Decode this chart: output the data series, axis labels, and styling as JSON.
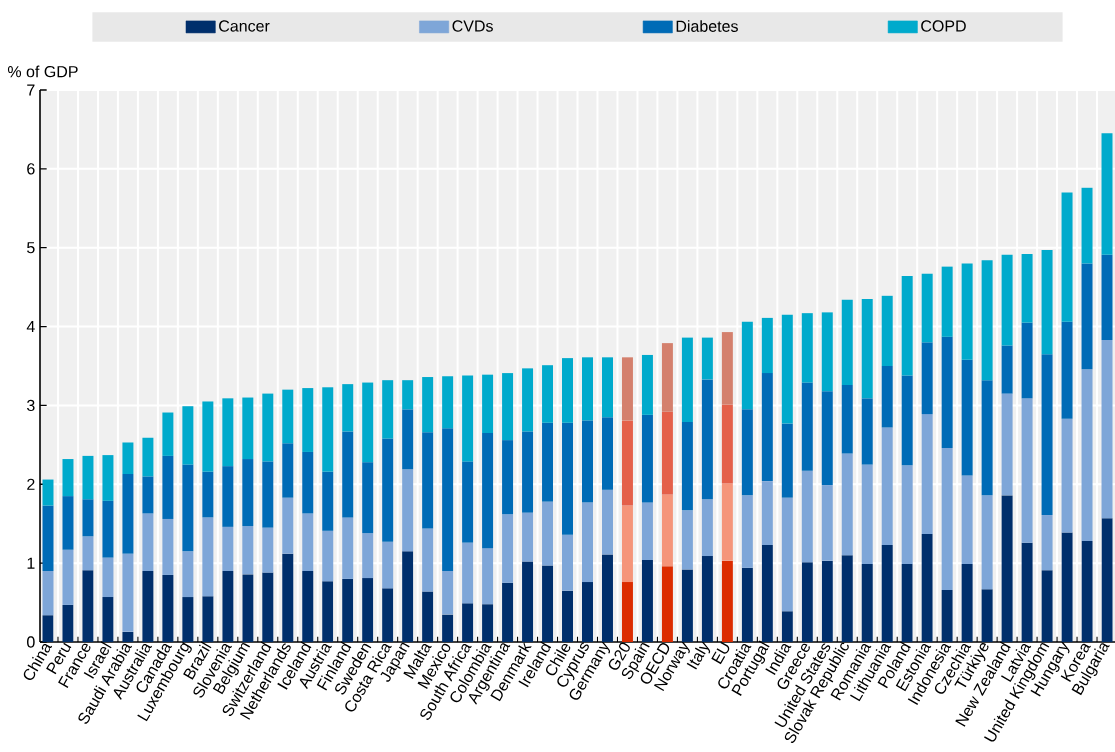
{
  "chart_data": {
    "type": "bar",
    "stacked": true,
    "ylabel": "% of GDP",
    "ylim": [
      0,
      7
    ],
    "yticks": [
      0,
      1,
      2,
      3,
      4,
      5,
      6,
      7
    ],
    "grid": true,
    "legend": "top",
    "categories": [
      "China",
      "Peru",
      "France",
      "Israel",
      "Saudi Arabia",
      "Australia",
      "Canada",
      "Luxembourg",
      "Brazil",
      "Slovenia",
      "Belgium",
      "Switzerland",
      "Netherlands",
      "Iceland",
      "Austria",
      "Finland",
      "Sweden",
      "Costa Rica",
      "Japan",
      "Malta",
      "Mexico",
      "South Africa",
      "Colombia",
      "Argentina",
      "Denmark",
      "Ireland",
      "Chile",
      "Cyprus",
      "Germany",
      "G20",
      "Spain",
      "OECD",
      "Norway",
      "Italy",
      "EU",
      "Croatia",
      "Portugal",
      "India",
      "Greece",
      "United States",
      "Slovak Republic",
      "Romania",
      "Lithuania",
      "Poland",
      "Estonia",
      "Indonesia",
      "Czechia",
      "Türkiye",
      "New Zealand",
      "Latvia",
      "United Kingdom",
      "Hungary",
      "Korea",
      "Bulgaria"
    ],
    "series": [
      {
        "name": "Cancer",
        "color": "#002f6c",
        "values": [
          0.34,
          0.47,
          0.91,
          0.57,
          0.13,
          0.9,
          0.85,
          0.57,
          0.58,
          0.9,
          0.86,
          0.88,
          1.12,
          0.9,
          0.77,
          0.8,
          0.81,
          0.68,
          1.15,
          0.64,
          0.35,
          0.49,
          0.48,
          0.75,
          1.02,
          0.97,
          0.65,
          0.76,
          1.11,
          0.76,
          1.04,
          0.96,
          0.92,
          1.09,
          1.03,
          0.94,
          1.23,
          0.39,
          1.01,
          1.03,
          1.1,
          0.99,
          1.23,
          0.99,
          1.37,
          0.66,
          0.99,
          0.67,
          1.86,
          1.26,
          0.91,
          1.39,
          1.28,
          1.57
        ],
        "colors": [
          "#002f6c",
          "#002f6c",
          "#002f6c",
          "#002f6c",
          "#002f6c",
          "#002f6c",
          "#002f6c",
          "#002f6c",
          "#002f6c",
          "#002f6c",
          "#002f6c",
          "#002f6c",
          "#002f6c",
          "#002f6c",
          "#002f6c",
          "#002f6c",
          "#002f6c",
          "#002f6c",
          "#002f6c",
          "#002f6c",
          "#002f6c",
          "#002f6c",
          "#002f6c",
          "#002f6c",
          "#002f6c",
          "#002f6c",
          "#002f6c",
          "#002f6c",
          "#002f6c",
          "#dc2c00",
          "#002f6c",
          "#dc2c00",
          "#002f6c",
          "#002f6c",
          "#dc2c00",
          "#002f6c",
          "#002f6c",
          "#002f6c",
          "#002f6c",
          "#002f6c",
          "#002f6c",
          "#002f6c",
          "#002f6c",
          "#002f6c",
          "#002f6c",
          "#002f6c",
          "#002f6c",
          "#002f6c",
          "#002f6c",
          "#002f6c",
          "#002f6c",
          "#002f6c",
          "#002f6c",
          "#002f6c"
        ]
      },
      {
        "name": "CVDs",
        "color": "#7ea6d8",
        "values": [
          0.56,
          0.7,
          0.43,
          0.5,
          0.99,
          0.73,
          0.71,
          0.58,
          1.0,
          0.56,
          0.61,
          0.57,
          0.71,
          0.73,
          0.64,
          0.78,
          0.57,
          0.59,
          1.04,
          0.8,
          0.55,
          0.77,
          0.71,
          0.87,
          0.62,
          0.81,
          0.71,
          1.01,
          0.82,
          0.97,
          0.73,
          0.91,
          0.75,
          0.72,
          0.98,
          0.92,
          0.81,
          1.44,
          1.16,
          0.96,
          1.29,
          1.26,
          1.49,
          1.25,
          1.52,
          1.8,
          1.12,
          1.19,
          1.29,
          1.83,
          0.7,
          1.44,
          2.18,
          2.26
        ],
        "colors": [
          "#7ea6d8",
          "#7ea6d8",
          "#7ea6d8",
          "#7ea6d8",
          "#7ea6d8",
          "#7ea6d8",
          "#7ea6d8",
          "#7ea6d8",
          "#7ea6d8",
          "#7ea6d8",
          "#7ea6d8",
          "#7ea6d8",
          "#7ea6d8",
          "#7ea6d8",
          "#7ea6d8",
          "#7ea6d8",
          "#7ea6d8",
          "#7ea6d8",
          "#7ea6d8",
          "#7ea6d8",
          "#7ea6d8",
          "#7ea6d8",
          "#7ea6d8",
          "#7ea6d8",
          "#7ea6d8",
          "#7ea6d8",
          "#7ea6d8",
          "#7ea6d8",
          "#7ea6d8",
          "#f5957a",
          "#7ea6d8",
          "#f5957a",
          "#7ea6d8",
          "#7ea6d8",
          "#f5957a",
          "#7ea6d8",
          "#7ea6d8",
          "#7ea6d8",
          "#7ea6d8",
          "#7ea6d8",
          "#7ea6d8",
          "#7ea6d8",
          "#7ea6d8",
          "#7ea6d8",
          "#7ea6d8",
          "#7ea6d8",
          "#7ea6d8",
          "#7ea6d8",
          "#7ea6d8",
          "#7ea6d8",
          "#7ea6d8",
          "#7ea6d8",
          "#7ea6d8",
          "#7ea6d8"
        ]
      },
      {
        "name": "Diabetes",
        "color": "#006bb6",
        "values": [
          0.83,
          0.68,
          0.47,
          0.72,
          1.01,
          0.47,
          0.8,
          1.1,
          0.58,
          0.77,
          0.85,
          0.84,
          0.69,
          0.78,
          0.75,
          1.09,
          0.9,
          1.31,
          0.76,
          1.22,
          1.81,
          1.03,
          1.46,
          0.94,
          1.03,
          1.0,
          1.42,
          1.04,
          0.92,
          1.08,
          1.11,
          1.05,
          1.12,
          1.52,
          1.0,
          1.09,
          1.37,
          0.94,
          1.12,
          1.19,
          0.87,
          0.84,
          0.78,
          1.14,
          0.91,
          1.41,
          1.47,
          1.46,
          0.61,
          0.96,
          2.04,
          1.23,
          1.34,
          1.08
        ],
        "colors": [
          "#006bb6",
          "#006bb6",
          "#006bb6",
          "#006bb6",
          "#006bb6",
          "#006bb6",
          "#006bb6",
          "#006bb6",
          "#006bb6",
          "#006bb6",
          "#006bb6",
          "#006bb6",
          "#006bb6",
          "#006bb6",
          "#006bb6",
          "#006bb6",
          "#006bb6",
          "#006bb6",
          "#006bb6",
          "#006bb6",
          "#006bb6",
          "#006bb6",
          "#006bb6",
          "#006bb6",
          "#006bb6",
          "#006bb6",
          "#006bb6",
          "#006bb6",
          "#006bb6",
          "#e4604a",
          "#006bb6",
          "#e4604a",
          "#006bb6",
          "#006bb6",
          "#e4604a",
          "#006bb6",
          "#006bb6",
          "#006bb6",
          "#006bb6",
          "#006bb6",
          "#006bb6",
          "#006bb6",
          "#006bb6",
          "#006bb6",
          "#006bb6",
          "#006bb6",
          "#006bb6",
          "#006bb6",
          "#006bb6",
          "#006bb6",
          "#006bb6",
          "#006bb6",
          "#006bb6",
          "#006bb6"
        ]
      },
      {
        "name": "COPD",
        "color": "#00aacc",
        "values": [
          0.33,
          0.47,
          0.55,
          0.58,
          0.4,
          0.49,
          0.55,
          0.74,
          0.89,
          0.86,
          0.78,
          0.86,
          0.68,
          0.81,
          1.07,
          0.6,
          1.01,
          0.74,
          0.37,
          0.7,
          0.66,
          1.09,
          0.74,
          0.85,
          0.8,
          0.73,
          0.82,
          0.8,
          0.76,
          0.8,
          0.76,
          0.87,
          1.07,
          0.53,
          0.92,
          1.11,
          0.7,
          1.38,
          0.88,
          1.0,
          1.08,
          1.26,
          0.89,
          1.26,
          0.87,
          0.89,
          1.22,
          1.52,
          1.15,
          0.87,
          1.32,
          1.64,
          0.96,
          1.54
        ],
        "colors": [
          "#00aacc",
          "#00aacc",
          "#00aacc",
          "#00aacc",
          "#00aacc",
          "#00aacc",
          "#00aacc",
          "#00aacc",
          "#00aacc",
          "#00aacc",
          "#00aacc",
          "#00aacc",
          "#00aacc",
          "#00aacc",
          "#00aacc",
          "#00aacc",
          "#00aacc",
          "#00aacc",
          "#00aacc",
          "#00aacc",
          "#00aacc",
          "#00aacc",
          "#00aacc",
          "#00aacc",
          "#00aacc",
          "#00aacc",
          "#00aacc",
          "#00aacc",
          "#00aacc",
          "#d4806d",
          "#00aacc",
          "#d4806d",
          "#00aacc",
          "#00aacc",
          "#d4806d",
          "#00aacc",
          "#00aacc",
          "#00aacc",
          "#00aacc",
          "#00aacc",
          "#00aacc",
          "#00aacc",
          "#00aacc",
          "#00aacc",
          "#00aacc",
          "#00aacc",
          "#00aacc",
          "#00aacc",
          "#00aacc",
          "#00aacc",
          "#00aacc",
          "#00aacc",
          "#00aacc",
          "#00aacc"
        ]
      }
    ]
  }
}
